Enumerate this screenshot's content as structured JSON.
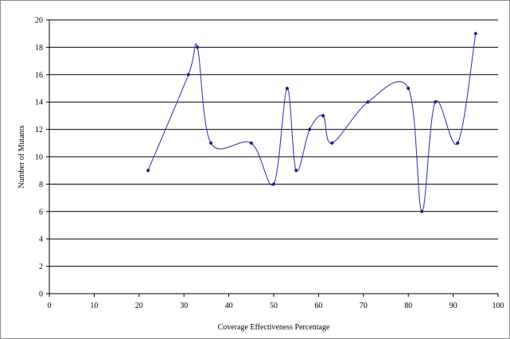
{
  "chart_data": {
    "type": "line",
    "title": "",
    "xlabel": "Coverage Effectiveness Percentage",
    "ylabel": "Number of Mutants",
    "xlim": [
      0,
      100
    ],
    "ylim": [
      0,
      20
    ],
    "x_ticks": [
      0,
      10,
      20,
      30,
      40,
      50,
      60,
      70,
      80,
      90,
      100
    ],
    "y_ticks": [
      0,
      2,
      4,
      6,
      8,
      10,
      12,
      14,
      16,
      18,
      20
    ],
    "grid": "horizontal",
    "legend": "none",
    "smooth": true,
    "line_color": "#3a3fb0",
    "marker_color": "#1a1f80",
    "grid_color": "#000000",
    "series": [
      {
        "x": [
          22,
          31,
          33,
          36,
          45,
          50,
          53,
          55,
          58,
          61,
          63,
          71,
          80,
          83,
          86,
          91,
          95
        ],
        "y": [
          9,
          16,
          18,
          11,
          11,
          8,
          15,
          9,
          12,
          13,
          11,
          14,
          15,
          6,
          14,
          11,
          19
        ]
      }
    ]
  }
}
